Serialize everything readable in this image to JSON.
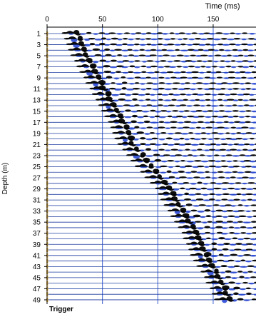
{
  "chart_data": {
    "type": "scatter",
    "subtype": "seismic-wiggle-traces",
    "xlabel": "Time (ms)",
    "ylabel": "Depth (m)",
    "x_ticks": [
      0,
      50,
      100,
      150
    ],
    "y_tick_labels": [
      1,
      3,
      5,
      7,
      9,
      11,
      13,
      15,
      17,
      19,
      21,
      23,
      25,
      27,
      29,
      31,
      33,
      35,
      37,
      39,
      41,
      43,
      45,
      47,
      49
    ],
    "xlim": [
      0,
      190
    ],
    "ylim": [
      0,
      50
    ],
    "trace_count": 49,
    "first_arrival": {
      "depth_m": [
        1,
        5,
        9,
        13,
        17,
        21,
        25,
        29,
        33,
        37,
        41,
        45,
        49
      ],
      "time_ms": [
        22,
        30,
        41,
        52,
        64,
        72,
        88,
        106,
        117,
        130,
        138,
        150,
        160
      ]
    },
    "grid": true,
    "trigger_label": "Trigger",
    "colors": {
      "trace_line": "#1e3ea0",
      "positive_fill": "#000000",
      "negative_fill": "#1f3fd1",
      "grid_line": "#3b5fcf",
      "trigger_marker": "#e8b64a",
      "axis": "#000000"
    }
  }
}
